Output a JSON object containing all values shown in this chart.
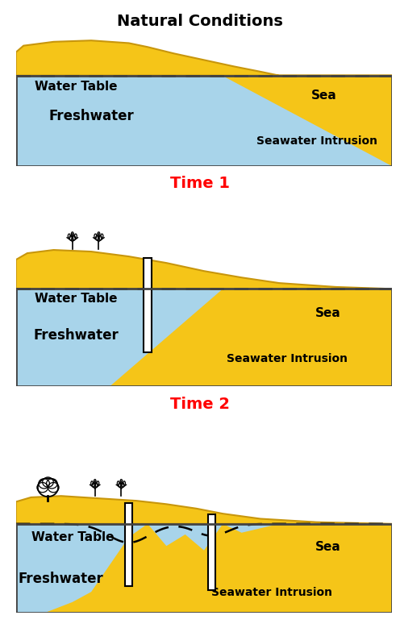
{
  "title": "Natural Conditions",
  "panel_titles": [
    "Time 1",
    "Time 2"
  ],
  "panel_title_color": "#FF0000",
  "bg_color": "#FFFFFF",
  "sand_color": "#F5C518",
  "sand_edge_color": "#C8960C",
  "water_color": "#A8D4EA",
  "border_color": "#444444",
  "label_freshwater": "Freshwater",
  "label_water_table": "Water Table",
  "label_sea": "Sea",
  "label_seawater": "Seawater Intrusion",
  "figsize": [
    4.96,
    7.79
  ],
  "dpi": 100
}
